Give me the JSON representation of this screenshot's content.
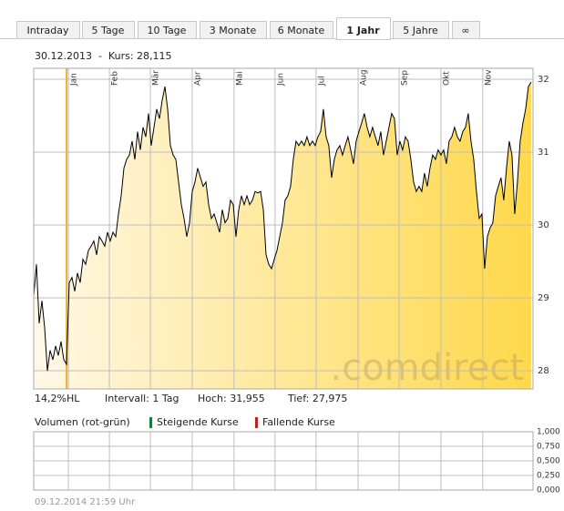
{
  "tabs": [
    "Intraday",
    "5 Tage",
    "10 Tage",
    "3 Monate",
    "6 Monate",
    "1 Jahr",
    "5 Jahre",
    "∞"
  ],
  "active_tab": 5,
  "chart_data": [
    {
      "type": "line",
      "subtitle": "30.12.2013  -  Kurs: 28,115",
      "values": [
        29.03,
        29.46,
        28.65,
        28.96,
        28.59,
        28.0,
        28.28,
        28.15,
        28.34,
        28.21,
        28.4,
        28.15,
        28.09,
        29.21,
        29.28,
        29.09,
        29.34,
        29.21,
        29.53,
        29.46,
        29.65,
        29.71,
        29.78,
        29.59,
        29.84,
        29.78,
        29.71,
        29.9,
        29.78,
        29.9,
        29.84,
        30.15,
        30.4,
        30.78,
        30.9,
        30.96,
        31.15,
        30.9,
        31.28,
        31.03,
        31.34,
        31.21,
        31.53,
        31.09,
        31.34,
        31.59,
        31.46,
        31.71,
        31.9,
        31.59,
        31.09,
        30.96,
        30.9,
        30.59,
        30.28,
        30.09,
        29.84,
        30.03,
        30.46,
        30.59,
        30.78,
        30.65,
        30.53,
        30.59,
        30.28,
        30.09,
        30.15,
        30.03,
        29.9,
        30.21,
        30.03,
        30.09,
        30.34,
        30.28,
        29.84,
        30.21,
        30.4,
        30.28,
        30.4,
        30.28,
        30.34,
        30.46,
        30.44,
        30.46,
        30.21,
        29.59,
        29.46,
        29.4,
        29.53,
        29.65,
        29.84,
        30.03,
        30.34,
        30.4,
        30.53,
        30.9,
        31.15,
        31.09,
        31.15,
        31.09,
        31.21,
        31.09,
        31.15,
        31.09,
        31.21,
        31.28,
        31.59,
        31.21,
        31.09,
        30.65,
        30.9,
        31.03,
        31.09,
        30.96,
        31.09,
        31.21,
        31.03,
        30.84,
        31.15,
        31.28,
        31.4,
        31.53,
        31.34,
        31.21,
        31.34,
        31.21,
        31.09,
        31.28,
        30.96,
        31.15,
        31.34,
        31.53,
        31.46,
        30.96,
        31.15,
        31.03,
        31.21,
        31.15,
        30.9,
        30.59,
        30.46,
        30.53,
        30.46,
        30.71,
        30.53,
        30.78,
        30.96,
        30.9,
        31.03,
        30.96,
        31.03,
        30.84,
        31.15,
        31.21,
        31.34,
        31.21,
        31.15,
        31.28,
        31.34,
        31.53,
        31.15,
        30.9,
        30.46,
        30.09,
        30.15,
        29.4,
        29.84,
        29.96,
        30.03,
        30.4,
        30.53,
        30.65,
        30.34,
        30.78,
        31.15,
        30.96,
        30.15,
        30.59,
        31.15,
        31.4,
        31.59,
        31.9,
        31.96
      ],
      "color": "#000000",
      "fill_gradient": [
        "#fff8e8",
        "#ffd84a"
      ],
      "xlim": [
        0,
        182.7
      ],
      "xticks": [
        {
          "value": 12.7,
          "label": "Jan"
        },
        {
          "value": 27.7,
          "label": "Feb"
        },
        {
          "value": 42.7,
          "label": "Mär"
        },
        {
          "value": 58,
          "label": "Apr"
        },
        {
          "value": 73.3,
          "label": "Mai"
        },
        {
          "value": 88.3,
          "label": "Jun"
        },
        {
          "value": 103.3,
          "label": "Jul"
        },
        {
          "value": 118.7,
          "label": "Aug"
        },
        {
          "value": 133.7,
          "label": "Sep"
        },
        {
          "value": 149,
          "label": "Okt"
        },
        {
          "value": 164.3,
          "label": "Nov"
        }
      ],
      "ylim": [
        27.75,
        32.15
      ],
      "yticks": [
        28,
        29,
        30,
        31,
        32
      ],
      "grid": true,
      "watermark": ".comdirect",
      "stats": [
        "14,2%HL",
        "Intervall: 1 Tag",
        "Hoch: 31,955",
        "Tief: 27,975"
      ]
    },
    {
      "type": "volume",
      "title": "Volumen (rot-grün)",
      "legend": [
        {
          "name": "Steigende Kurse",
          "color": "#1e7a3a"
        },
        {
          "name": "Fallende Kurse",
          "color": "#c0201e"
        }
      ],
      "ylim": [
        0,
        1
      ],
      "yticks": [
        {
          "value": 1,
          "label": "1,000"
        },
        {
          "value": 0.75,
          "label": "0,750"
        },
        {
          "value": 0.5,
          "label": "0,500"
        },
        {
          "value": 0.25,
          "label": "0,250"
        },
        {
          "value": 0,
          "label": "0,000"
        }
      ],
      "grid": true
    }
  ],
  "timestamp": "09.12.2014 21:59 Uhr"
}
